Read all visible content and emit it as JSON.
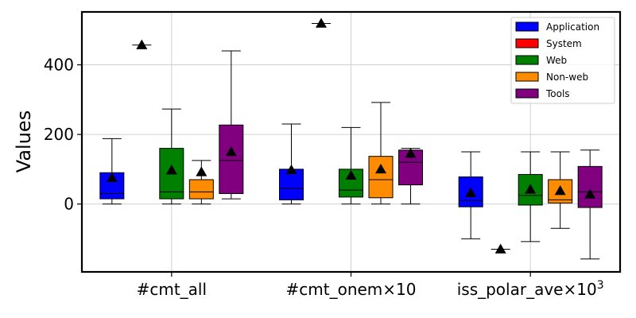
{
  "chart_data": {
    "type": "box",
    "ylabel": "Values",
    "ylim": [
      -195,
      552
    ],
    "yticks": [
      0,
      200,
      400
    ],
    "grid": true,
    "legend_position": "top-right",
    "categories": [
      {
        "text": "#cmt_all",
        "suffix": ""
      },
      {
        "text": "#cmt_onem×10",
        "suffix": ""
      },
      {
        "text": "iss_polar_ave×10",
        "suffix": "3"
      }
    ],
    "series": [
      {
        "name": "Application",
        "color": "#0000ff",
        "boxes": [
          {
            "min": 0,
            "q1": 15,
            "median": 30,
            "q3": 90,
            "max": 188,
            "mean": 75
          },
          {
            "min": 0,
            "q1": 12,
            "median": 45,
            "q3": 100,
            "max": 230,
            "mean": 98
          },
          {
            "min": -100,
            "q1": -8,
            "median": 10,
            "q3": 78,
            "max": 150,
            "mean": 32
          }
        ]
      },
      {
        "name": "System",
        "color": "#ff0000",
        "boxes": [
          {
            "min": 457,
            "q1": 457,
            "median": 457,
            "q3": 457,
            "max": 457,
            "mean": 457
          },
          {
            "min": 519,
            "q1": 519,
            "median": 519,
            "q3": 519,
            "max": 519,
            "mean": 519
          },
          {
            "min": -130,
            "q1": -130,
            "median": -130,
            "q3": -130,
            "max": -130,
            "mean": -130
          }
        ]
      },
      {
        "name": "Web",
        "color": "#008000",
        "boxes": [
          {
            "min": 0,
            "q1": 15,
            "median": 35,
            "q3": 160,
            "max": 273,
            "mean": 97
          },
          {
            "min": 0,
            "q1": 20,
            "median": 40,
            "q3": 100,
            "max": 220,
            "mean": 82
          },
          {
            "min": -108,
            "q1": -3,
            "median": 25,
            "q3": 85,
            "max": 150,
            "mean": 42
          }
        ]
      },
      {
        "name": "Non-web",
        "color": "#ff8c00",
        "boxes": [
          {
            "min": 0,
            "q1": 15,
            "median": 35,
            "q3": 70,
            "max": 125,
            "mean": 92
          },
          {
            "min": 0,
            "q1": 18,
            "median": 70,
            "q3": 137,
            "max": 292,
            "mean": 100
          },
          {
            "min": -70,
            "q1": 3,
            "median": 12,
            "q3": 70,
            "max": 150,
            "mean": 38
          }
        ]
      },
      {
        "name": "Tools",
        "color": "#800080",
        "boxes": [
          {
            "min": 15,
            "q1": 30,
            "median": 125,
            "q3": 227,
            "max": 440,
            "mean": 150
          },
          {
            "min": 0,
            "q1": 55,
            "median": 120,
            "q3": 155,
            "max": 160,
            "mean": 145
          },
          {
            "min": -158,
            "q1": -10,
            "median": 35,
            "q3": 108,
            "max": 155,
            "mean": 28
          }
        ]
      }
    ]
  }
}
